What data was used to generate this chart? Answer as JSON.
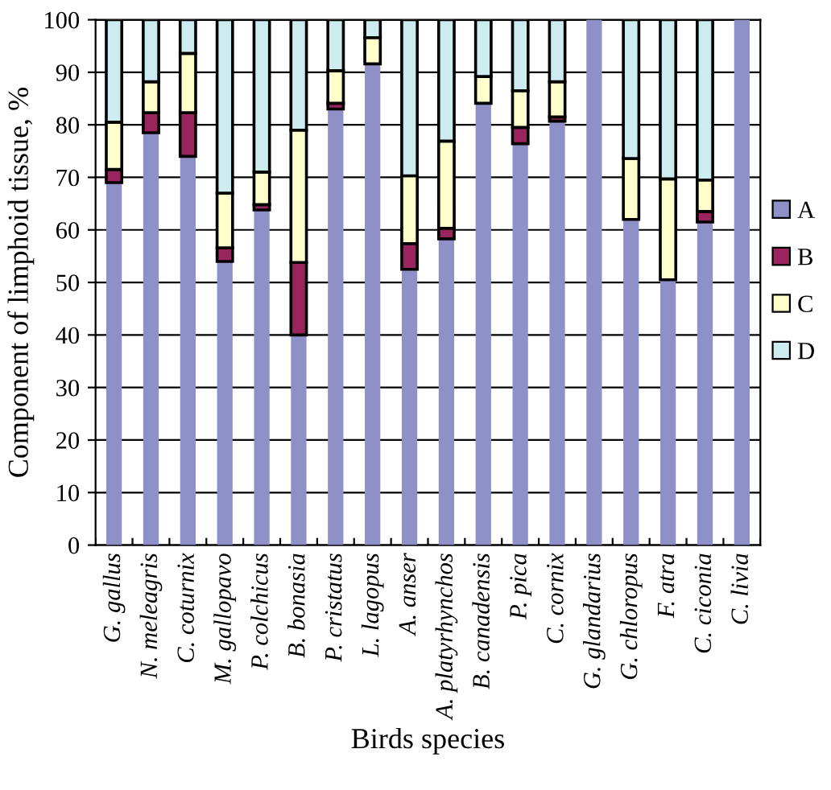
{
  "chart_data": {
    "type": "bar",
    "stacked": true,
    "xlabel": "Birds species",
    "ylabel": "Component of limphoid tissue, %",
    "categories": [
      "G. gallus",
      "N. meleagris",
      "C. coturnix",
      "M. gallopavo",
      "P. colchicus",
      "B. bonasia",
      "P. cristatus",
      "L. lagopus",
      "A. anser",
      "A. platyrhynchos",
      "B. canadensis",
      "P. pica",
      "C. cornix",
      "G. glandarius",
      "G. chloropus",
      "F. atra",
      "C. ciconia",
      "C. livia"
    ],
    "series": [
      {
        "name": "A",
        "color": "#9090c8",
        "values": [
          69,
          78.5,
          74,
          54,
          63.8,
          40,
          83,
          91.6,
          52.5,
          58.3,
          84.1,
          76.4,
          80.7,
          100,
          62,
          50.5,
          61.5,
          100
        ]
      },
      {
        "name": "B",
        "color": "#99245e",
        "values": [
          2.5,
          3.8,
          8.3,
          2.6,
          1,
          13.8,
          1.1,
          0,
          4.9,
          2,
          0,
          3.1,
          0.8,
          0,
          0,
          0,
          2,
          0
        ]
      },
      {
        "name": "C",
        "color": "#ffffcc",
        "values": [
          9,
          5.9,
          11.3,
          10.4,
          6.2,
          25.2,
          6.2,
          5,
          12.9,
          16.6,
          5.1,
          7,
          6.7,
          0,
          11.6,
          19.2,
          6,
          0
        ]
      },
      {
        "name": "D",
        "color": "#ccecf0",
        "values": [
          19.5,
          11.8,
          6.4,
          33,
          29,
          21,
          9.7,
          3.4,
          29.7,
          23.1,
          10.8,
          13.5,
          11.8,
          0,
          26.4,
          30.3,
          30.5,
          0
        ]
      }
    ],
    "ylim": [
      0,
      100
    ],
    "yticks": [
      0,
      10,
      20,
      30,
      40,
      50,
      60,
      70,
      80,
      90,
      100
    ],
    "grid": "y",
    "legend": "right"
  }
}
